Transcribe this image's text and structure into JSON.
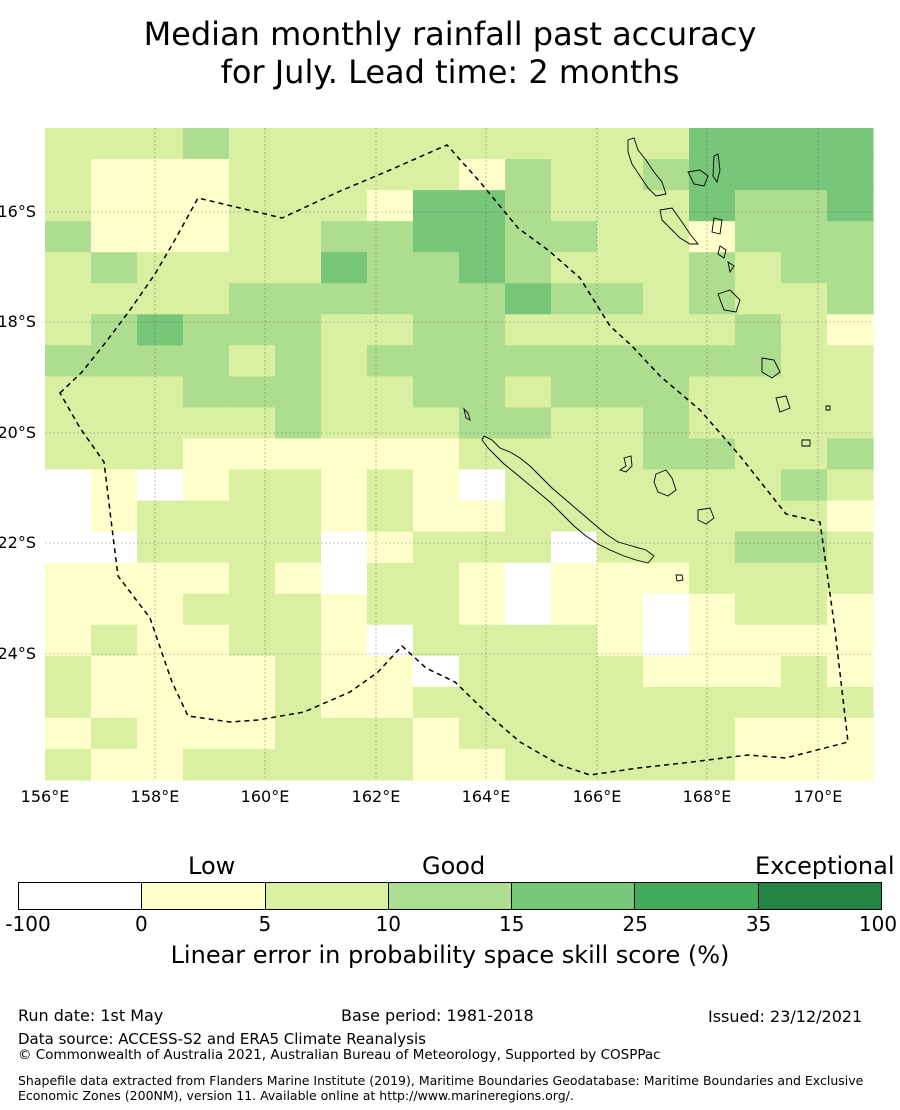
{
  "title": {
    "line1": "Median monthly rainfall past accuracy",
    "line2": "for July. Lead time: 2 months"
  },
  "map": {
    "lon_ticks": [
      "156°E",
      "158°E",
      "160°E",
      "162°E",
      "164°E",
      "166°E",
      "168°E",
      "170°E"
    ],
    "lat_ticks": [
      "16°S",
      "18°S",
      "20°S",
      "22°S",
      "24°S"
    ]
  },
  "legend": {
    "categories": [
      "Low",
      "Good",
      "Exceptional"
    ],
    "boundaries": [
      "-100",
      "0",
      "5",
      "10",
      "15",
      "25",
      "35",
      "100"
    ],
    "colors": [
      "#ffffff",
      "#ffffcc",
      "#d9f0a3",
      "#addd8e",
      "#78c679",
      "#41ab5d",
      "#238443"
    ],
    "axis_label": "Linear error in probability space skill score (%)"
  },
  "footer": {
    "run_date": "Run date: 1st May",
    "base_period": "Base period: 1981-2018",
    "issued": "Issued: 23/12/2021",
    "data_source": "Data source: ACCESS-S2 and ERA5 Climate Reanalysis",
    "copyright": "© Commonwealth of Australia 2021, Australian Bureau of Meteorology, Supported by COSPPac",
    "shapefile": "Shapefile data extracted from Flanders Marine Institute (2019), Maritime Boundaries Geodatabase: Maritime Boundaries and Exclusive Economic Zones (200NM), version 11. Available online at http://www.marineregions.org/."
  }
}
